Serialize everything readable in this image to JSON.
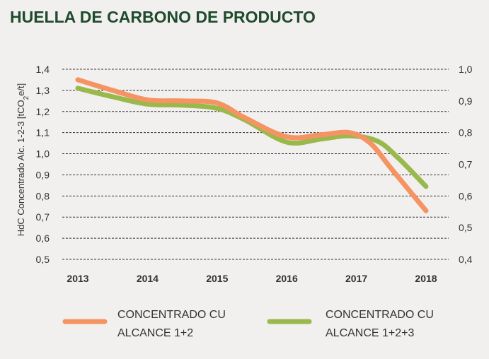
{
  "chart_data": {
    "type": "line",
    "title": "HUELLA DE CARBONO DE PRODUCTO",
    "ylabel": "HdC Concentrado Alc. 1-2-3 [tCO2e/t]",
    "ylabel_parts": {
      "pre": "HdC Concentrado Alc. 1-2-3 [tCO",
      "sub": "2",
      "post": "e/t]"
    },
    "x": [
      "2013",
      "2014",
      "2015",
      "2016",
      "2017",
      "2018"
    ],
    "ylim_left": [
      0.5,
      1.4
    ],
    "yticks_left": [
      "0,5",
      "0,6",
      "0,7",
      "0,8",
      "0,9",
      "1,0",
      "1,1",
      "1,2",
      "1,3",
      "1,4"
    ],
    "ylim_right": [
      0.4,
      1.0
    ],
    "yticks_right": [
      "0,4",
      "0,5",
      "0,6",
      "0,7",
      "0,8",
      "0,9",
      "1,0"
    ],
    "grid": true,
    "legend_position": "bottom",
    "series": [
      {
        "name_lines": [
          "CONCENTRADO CU",
          "ALCANCE 1+2"
        ],
        "color": "#f59462",
        "axis": "left",
        "values": [
          1.35,
          1.25,
          1.24,
          1.08,
          1.09,
          0.73
        ],
        "curve_x": [
          2013,
          2013.5,
          2014,
          2014.5,
          2015,
          2015.4,
          2016,
          2016.5,
          2016.9,
          2017.2,
          2017.5,
          2018
        ],
        "curve_y": [
          1.35,
          1.3,
          1.255,
          1.25,
          1.24,
          1.17,
          1.08,
          1.09,
          1.1,
          1.05,
          0.93,
          0.73
        ]
      },
      {
        "name_lines": [
          "CONCENTRADO CU",
          "ALCANCE 1+2+3"
        ],
        "color": "#9ab94d",
        "axis": "left",
        "values": [
          1.31,
          1.24,
          1.21,
          1.05,
          1.08,
          0.84
        ],
        "curve_x": [
          2013,
          2013.5,
          2014,
          2014.5,
          2015,
          2015.4,
          2016,
          2016.5,
          2016.9,
          2017.3,
          2017.6,
          2018
        ],
        "curve_y": [
          1.31,
          1.27,
          1.235,
          1.23,
          1.215,
          1.16,
          1.055,
          1.07,
          1.085,
          1.06,
          0.98,
          0.845
        ]
      }
    ]
  }
}
